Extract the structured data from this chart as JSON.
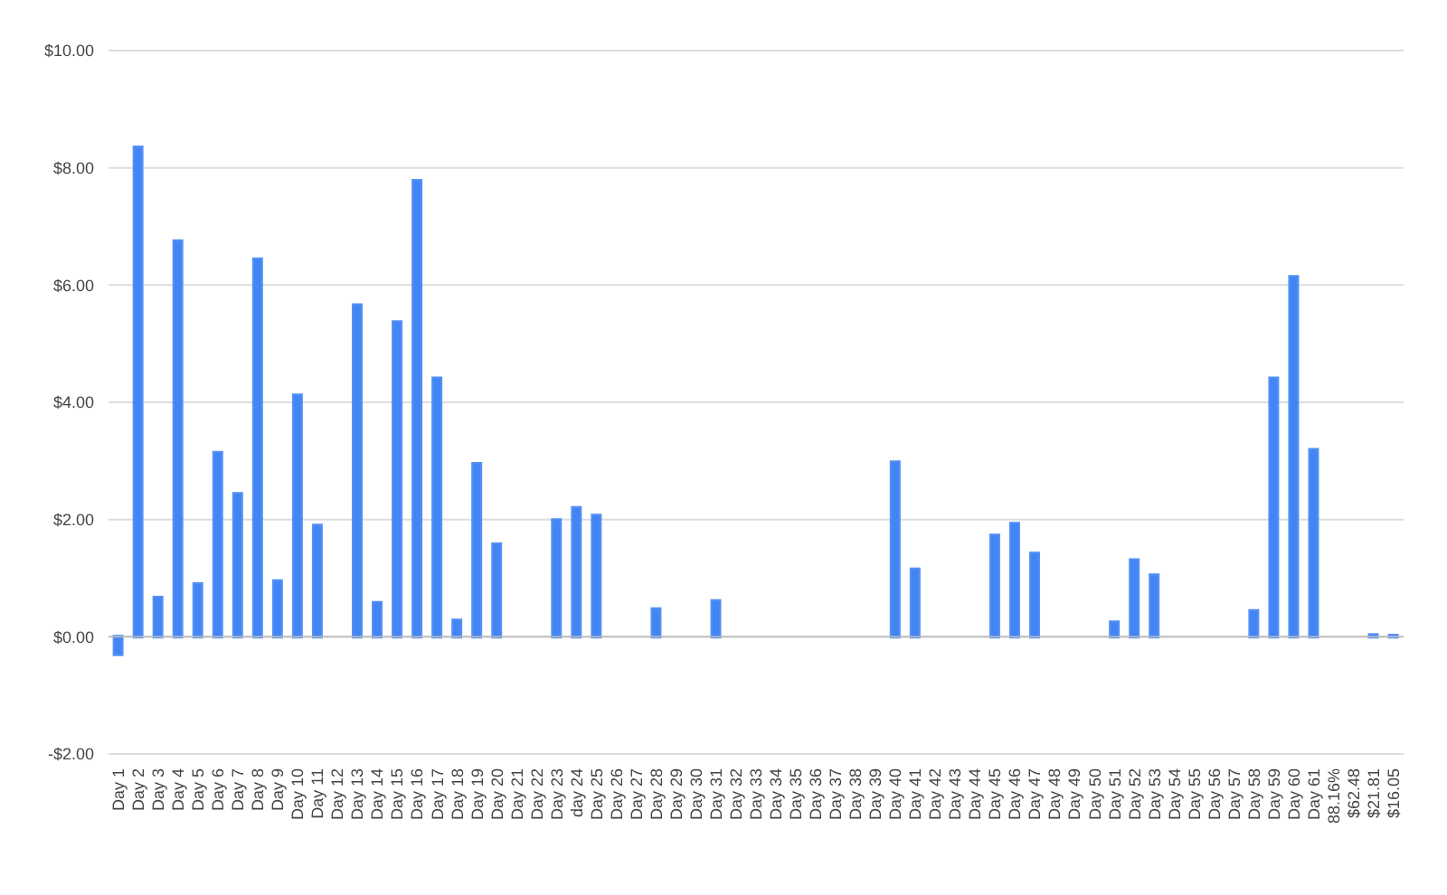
{
  "chart_data": {
    "type": "bar",
    "categories": [
      "Day 1",
      "Day 2",
      "Day 3",
      "Day 4",
      "Day 5",
      "Day 6",
      "Day 7",
      "Day 8",
      "Day 9",
      "Day 10",
      "Day 11",
      "Day 12",
      "Day 13",
      "Day 14",
      "Day 15",
      "Day 16",
      "Day 17",
      "Day 18",
      "Day 19",
      "Day 20",
      "Day 21",
      "Day 22",
      "Day 23",
      "day 24",
      "Day 25",
      "Day 26",
      "Day 27",
      "Day 28",
      "Day 29",
      "Day 30",
      "Day 31",
      "Day 32",
      "Day 33",
      "Day 34",
      "Day 35",
      "Day 36",
      "Day 37",
      "Day 38",
      "Day 39",
      "Day 40",
      "Day 41",
      "Day 42",
      "Day 43",
      "Day 44",
      "Day 45",
      "Day 46",
      "Day 47",
      "Day 48",
      "Day 49",
      "Day 50",
      "Day 51",
      "Day 52",
      "Day 53",
      "Day 54",
      "Day 55",
      "Day 56",
      "Day 57",
      "Day 58",
      "Day 59",
      "Day 60",
      "Day 61",
      "88.16%",
      "$62.48",
      "$21.81",
      "$16.05"
    ],
    "values": [
      -0.3,
      8.35,
      0.67,
      6.75,
      0.9,
      3.14,
      2.44,
      6.44,
      0.95,
      4.12,
      1.9,
      0,
      5.66,
      0.58,
      5.37,
      7.78,
      4.41,
      0.28,
      2.95,
      1.58,
      0,
      0,
      1.99,
      2.2,
      2.07,
      0,
      0,
      0.47,
      0,
      0,
      0.61,
      0,
      0,
      0,
      0,
      0,
      0,
      0,
      0,
      2.98,
      1.15,
      0,
      0,
      0,
      1.73,
      1.93,
      1.42,
      0,
      0,
      0,
      0.25,
      1.31,
      1.05,
      0,
      0,
      0,
      0,
      0.44,
      4.41,
      6.14,
      3.19,
      0,
      0,
      0.03,
      0.02
    ],
    "color": "#4285f4",
    "ylim": [
      -2,
      10
    ],
    "yticks": [
      {
        "value": -2,
        "label": "-$2.00"
      },
      {
        "value": 0,
        "label": "$0.00"
      },
      {
        "value": 2,
        "label": "$2.00"
      },
      {
        "value": 4,
        "label": "$4.00"
      },
      {
        "value": 6,
        "label": "$6.00"
      },
      {
        "value": 8,
        "label": "$8.00"
      },
      {
        "value": 10,
        "label": "$10.00"
      }
    ],
    "grid": "y"
  }
}
